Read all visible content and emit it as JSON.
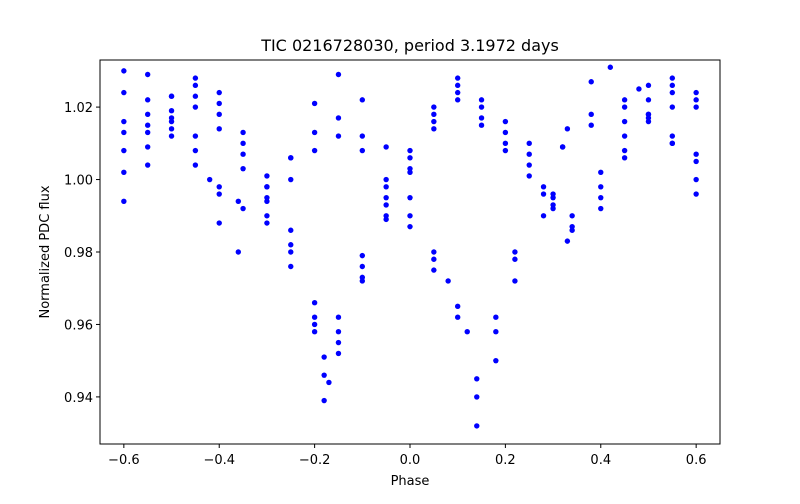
{
  "chart_data": {
    "type": "scatter",
    "title": "TIC 0216728030, period 3.1972 days",
    "xlabel": "Phase",
    "ylabel": "Normalized PDC flux",
    "xlim": [
      -0.65,
      0.65
    ],
    "ylim": [
      0.927,
      1.033
    ],
    "xticks": [
      -0.6,
      -0.4,
      -0.2,
      0.0,
      0.2,
      0.4,
      0.6
    ],
    "xtick_labels": [
      "−0.6",
      "−0.4",
      "−0.2",
      "0.0",
      "0.2",
      "0.4",
      "0.6"
    ],
    "yticks": [
      0.94,
      0.96,
      0.98,
      1.0,
      1.02
    ],
    "ytick_labels": [
      "0.94",
      "0.96",
      "0.98",
      "1.00",
      "1.02"
    ],
    "grid": false,
    "marker_color": "#0000ff",
    "series": [
      {
        "x": [
          -0.6,
          -0.55,
          -0.5,
          -0.45,
          -0.4,
          -0.35,
          -0.3,
          -0.25,
          -0.2,
          -0.18,
          -0.15,
          -0.1,
          -0.05,
          0.0,
          0.05,
          0.1,
          0.15,
          0.2,
          0.25,
          0.3,
          0.34,
          0.4,
          0.45,
          0.5,
          0.55,
          0.6
        ],
        "y": [
          1.008,
          1.013,
          1.019,
          1.026,
          1.021,
          1.01,
          0.998,
          0.982,
          0.958,
          0.939,
          0.952,
          0.972,
          0.99,
          1.003,
          1.016,
          1.028,
          1.022,
          1.016,
          1.01,
          0.996,
          0.987,
          0.998,
          1.012,
          1.022,
          1.026,
          1.024
        ]
      },
      {
        "x": [
          -0.6,
          -0.55,
          -0.5,
          -0.45,
          -0.4,
          -0.35,
          -0.3,
          -0.25,
          -0.2,
          -0.18,
          -0.15,
          -0.1,
          -0.05,
          0.0,
          0.05,
          0.1,
          0.15,
          0.2,
          0.25,
          0.3,
          0.34,
          0.4,
          0.45,
          0.5,
          0.55,
          0.6
        ],
        "y": [
          1.002,
          1.009,
          1.016,
          1.023,
          1.018,
          1.007,
          0.995,
          0.98,
          0.962,
          0.946,
          0.958,
          0.976,
          0.993,
          1.006,
          1.018,
          1.026,
          1.02,
          1.013,
          1.007,
          0.995,
          0.99,
          1.002,
          1.016,
          1.026,
          1.028,
          1.02
        ]
      },
      {
        "x": [
          -0.6,
          -0.55,
          -0.5,
          -0.45,
          -0.4,
          -0.35,
          -0.3,
          -0.25,
          -0.2,
          -0.18,
          -0.15,
          -0.1,
          -0.05,
          0.0,
          0.05,
          0.1,
          0.15,
          0.2,
          0.25,
          0.3,
          0.34,
          0.4,
          0.45,
          0.5,
          0.55,
          0.6
        ],
        "y": [
          1.013,
          1.018,
          1.023,
          1.028,
          1.024,
          1.013,
          1.001,
          0.986,
          0.966,
          0.951,
          0.962,
          0.979,
          0.995,
          1.008,
          1.02,
          1.024,
          1.017,
          1.01,
          1.004,
          0.993,
          0.986,
          0.995,
          1.008,
          1.018,
          1.024,
          1.022
        ]
      },
      {
        "x": [
          -0.6,
          -0.55,
          -0.5,
          -0.45,
          -0.4,
          -0.35,
          -0.3,
          -0.25,
          -0.2,
          -0.17,
          -0.15,
          -0.1,
          -0.05,
          0.0,
          0.05,
          0.1,
          0.15,
          0.2,
          0.25,
          0.3,
          0.33,
          0.4,
          0.45,
          0.5,
          0.55,
          0.6
        ],
        "y": [
          0.994,
          1.004,
          1.014,
          1.02,
          1.014,
          1.003,
          0.99,
          0.976,
          0.96,
          0.944,
          0.955,
          0.973,
          0.989,
          1.002,
          1.014,
          1.022,
          1.015,
          1.008,
          1.001,
          0.992,
          0.983,
          0.992,
          1.006,
          1.017,
          1.02,
          1.007
        ]
      },
      {
        "x": [
          -0.6,
          -0.55,
          -0.5,
          -0.45,
          -0.42,
          -0.4,
          -0.36,
          -0.3,
          -0.25,
          -0.2,
          -0.15,
          -0.1,
          -0.05,
          0.0,
          0.05,
          0.08,
          0.12,
          0.14,
          0.18,
          0.22,
          0.28,
          0.33,
          0.38,
          0.42,
          0.48,
          0.55,
          0.6
        ],
        "y": [
          1.03,
          1.029,
          1.023,
          1.012,
          1.0,
          0.988,
          0.98,
          0.988,
          1.006,
          1.021,
          1.029,
          1.022,
          1.009,
          0.995,
          0.98,
          0.972,
          0.958,
          0.932,
          0.95,
          0.972,
          0.99,
          1.014,
          1.027,
          1.031,
          1.025,
          1.01,
          0.996
        ]
      },
      {
        "x": [
          -0.6,
          -0.55,
          -0.5,
          -0.45,
          -0.4,
          -0.36,
          -0.3,
          -0.25,
          -0.2,
          -0.15,
          -0.1,
          -0.05,
          0.0,
          0.05,
          0.1,
          0.14,
          0.18,
          0.22,
          0.28,
          0.32,
          0.38,
          0.45,
          0.5,
          0.55,
          0.6
        ],
        "y": [
          1.024,
          1.022,
          1.017,
          1.008,
          0.998,
          0.994,
          0.998,
          1.006,
          1.013,
          1.017,
          1.012,
          1.0,
          0.99,
          0.978,
          0.965,
          0.94,
          0.958,
          0.978,
          0.996,
          1.009,
          1.018,
          1.022,
          1.018,
          1.012,
          1.005
        ]
      },
      {
        "x": [
          -0.6,
          -0.55,
          -0.5,
          -0.45,
          -0.4,
          -0.35,
          -0.3,
          -0.25,
          -0.2,
          -0.15,
          -0.1,
          -0.05,
          0.0,
          0.05,
          0.1,
          0.14,
          0.18,
          0.22,
          0.28,
          0.32,
          0.38,
          0.45,
          0.5,
          0.55,
          0.6
        ],
        "y": [
          1.016,
          1.015,
          1.012,
          1.004,
          0.996,
          0.992,
          0.994,
          1.0,
          1.008,
          1.012,
          1.008,
          0.998,
          0.987,
          0.975,
          0.962,
          0.945,
          0.962,
          0.98,
          0.998,
          1.009,
          1.015,
          1.02,
          1.016,
          1.01,
          1.0
        ]
      }
    ]
  }
}
